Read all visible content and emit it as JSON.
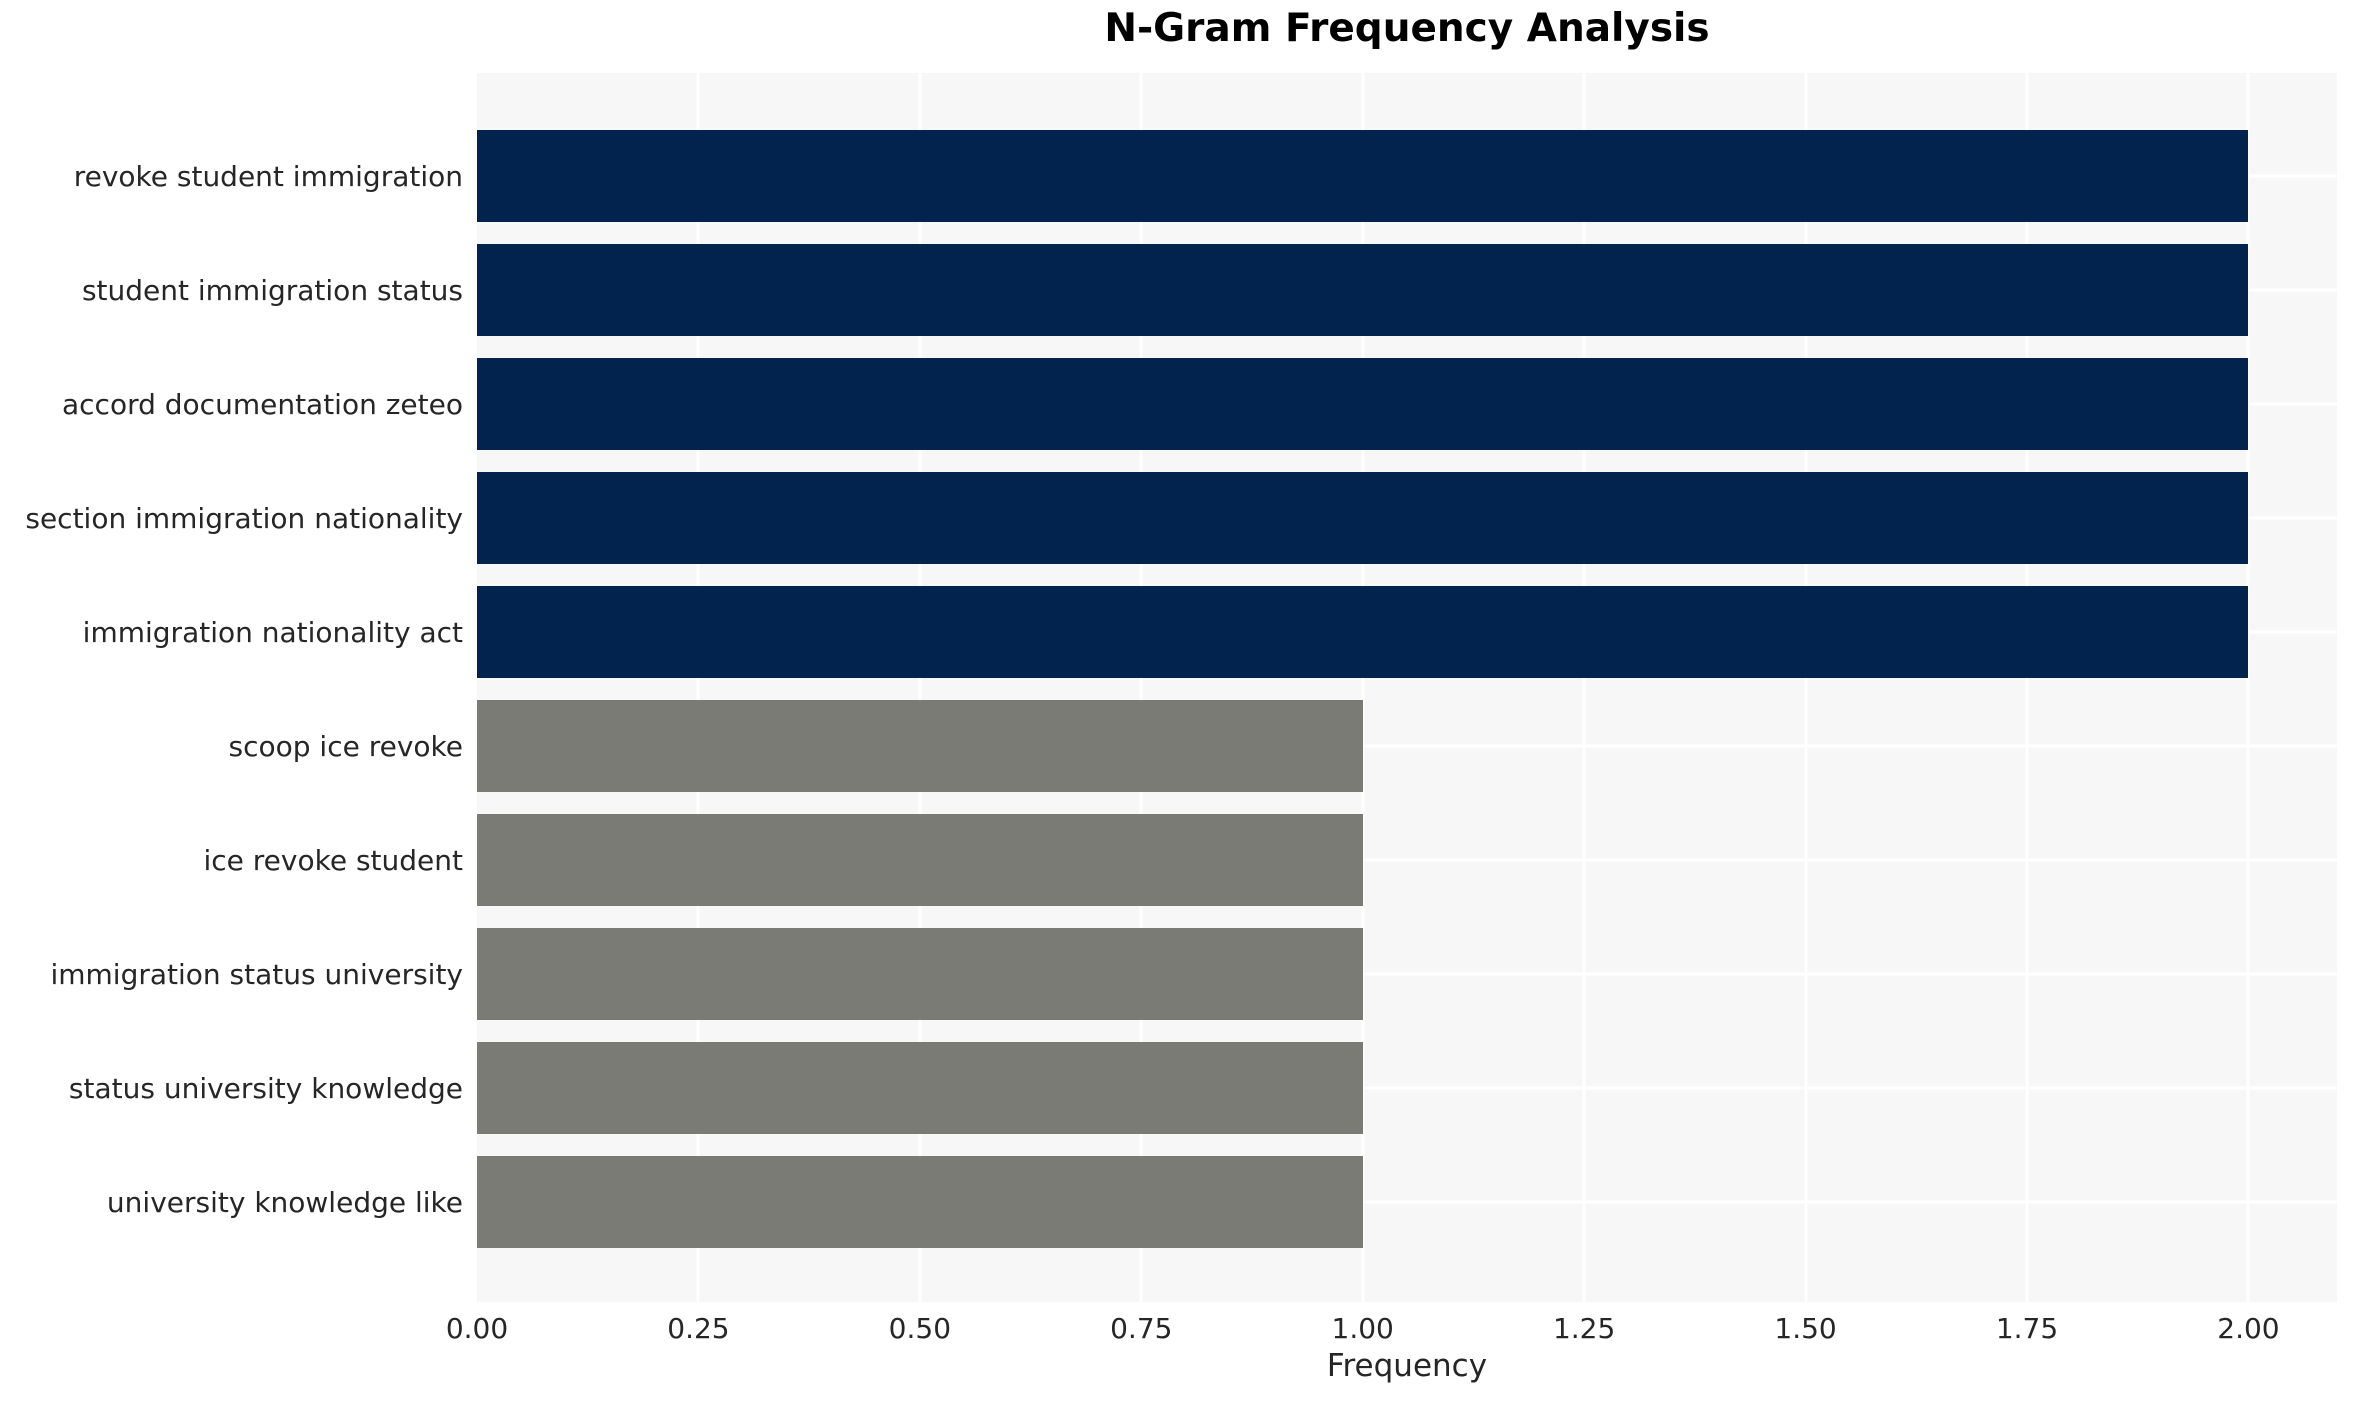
{
  "chart_data": {
    "type": "bar",
    "orientation": "horizontal",
    "title": "N-Gram Frequency Analysis",
    "xlabel": "Frequency",
    "ylabel": "",
    "categories": [
      "revoke student immigration",
      "student immigration status",
      "accord documentation zeteo",
      "section immigration nationality",
      "immigration nationality act",
      "scoop ice revoke",
      "ice revoke student",
      "immigration status university",
      "status university knowledge",
      "university knowledge like"
    ],
    "values": [
      2,
      2,
      2,
      2,
      2,
      1,
      1,
      1,
      1,
      1
    ],
    "colors": [
      "#02234d",
      "#02234d",
      "#02234d",
      "#02234d",
      "#02234d",
      "#7b7b76",
      "#7b7b76",
      "#7b7b76",
      "#7b7b76",
      "#7b7b76"
    ],
    "xlim": [
      0,
      2.1
    ],
    "xticks": [
      {
        "label": "0.00",
        "value": 0.0
      },
      {
        "label": "0.25",
        "value": 0.25
      },
      {
        "label": "0.50",
        "value": 0.5
      },
      {
        "label": "0.75",
        "value": 0.75
      },
      {
        "label": "1.00",
        "value": 1.0
      },
      {
        "label": "1.25",
        "value": 1.25
      },
      {
        "label": "1.50",
        "value": 1.5
      },
      {
        "label": "1.75",
        "value": 1.75
      },
      {
        "label": "2.00",
        "value": 2.0
      }
    ],
    "grid": true,
    "legend": false,
    "styles": {
      "plot_background": "#f7f7f7",
      "grid_color": "#ffffff",
      "bar_color_frequent": "#02234d",
      "bar_color_rare": "#7b7b76",
      "tick_text_color": "#262626",
      "title_color": "#000000"
    }
  }
}
